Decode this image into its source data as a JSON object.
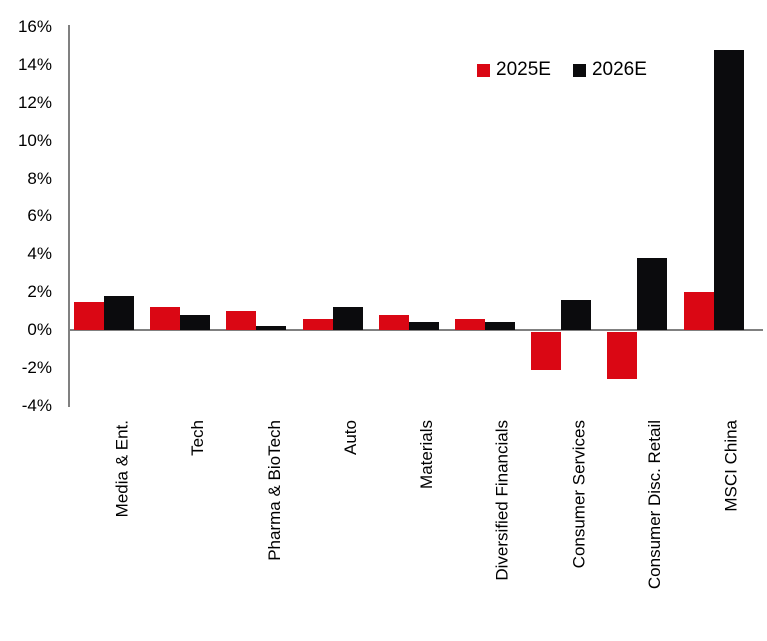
{
  "chart_data": {
    "type": "bar",
    "title": "",
    "xlabel": "",
    "ylabel": "",
    "categories": [
      "Media & Ent.",
      "Tech",
      "Pharma & BioTech",
      "Auto",
      "Materials",
      "Diversified Financials",
      "Consumer Services",
      "Consumer Disc. Retail",
      "MSCI China"
    ],
    "series": [
      {
        "name": "2025E",
        "color": "#DA0714",
        "values": [
          1.5,
          1.2,
          1.0,
          0.6,
          0.8,
          0.6,
          -2.0,
          -2.5,
          2.0
        ]
      },
      {
        "name": "2026E",
        "color": "#0B0B0D",
        "values": [
          1.8,
          0.8,
          0.2,
          1.2,
          0.4,
          0.4,
          1.6,
          3.8,
          14.8
        ]
      }
    ],
    "ylim": [
      -4,
      16
    ],
    "y_tick_step": 2,
    "y_tick_labels": [
      "16%",
      "14%",
      "12%",
      "10%",
      "8%",
      "6%",
      "4%",
      "2%",
      "0%",
      "-2%",
      "-4%"
    ],
    "grid": false,
    "legend_position": "top-right",
    "axis_color": "#808080",
    "text_color": "#000000",
    "background": "#FFFFFF"
  }
}
